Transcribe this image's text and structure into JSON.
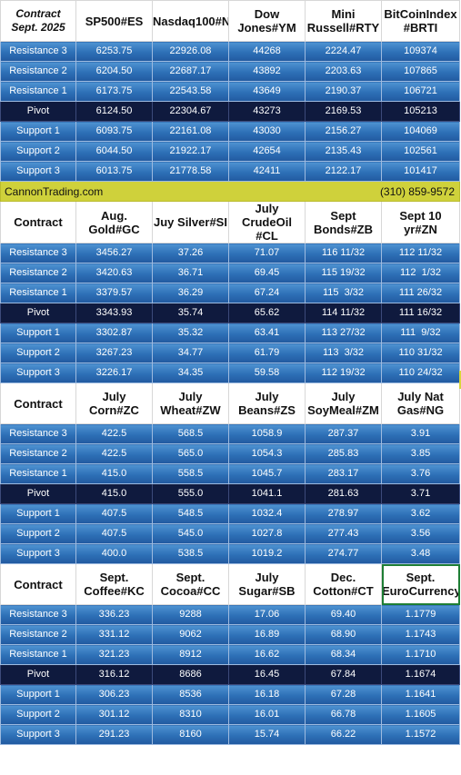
{
  "sections": [
    {
      "header": {
        "label_line1": "Contract",
        "label_line2": "Sept. 2025",
        "columns": [
          [
            "SP500",
            "#ES"
          ],
          [
            "Nasdaq100",
            "#NQ"
          ],
          [
            "Dow Jones",
            "#YM"
          ],
          [
            "Mini Russell",
            "#RTY"
          ],
          [
            "BitCoin",
            "Index #BRTI"
          ]
        ]
      },
      "rows": [
        {
          "label": "Resistance 3",
          "values": [
            "6253.75",
            "22926.08",
            "44268",
            "2224.47",
            "109374"
          ]
        },
        {
          "label": "Resistance 2",
          "values": [
            "6204.50",
            "22687.17",
            "43892",
            "2203.63",
            "107865"
          ]
        },
        {
          "label": "Resistance 1",
          "values": [
            "6173.75",
            "22543.58",
            "43649",
            "2190.37",
            "106721"
          ]
        },
        {
          "label": "Pivot",
          "values": [
            "6124.50",
            "22304.67",
            "43273",
            "2169.53",
            "105213"
          ]
        },
        {
          "label": "Support 1",
          "values": [
            "6093.75",
            "22161.08",
            "43030",
            "2156.27",
            "104069"
          ]
        },
        {
          "label": "Support 2",
          "values": [
            "6044.50",
            "21922.17",
            "42654",
            "2135.43",
            "102561"
          ]
        },
        {
          "label": "Support 3",
          "values": [
            "6013.75",
            "21778.58",
            "42411",
            "2122.17",
            "101417"
          ]
        }
      ]
    },
    {
      "header": {
        "label_line1": "Contract",
        "columns": [
          [
            "Aug. Gold",
            "#GC"
          ],
          [
            "Juy Silver",
            "#SI"
          ],
          [
            "July Crude",
            "Oil #CL"
          ],
          [
            "Sept Bonds",
            "#ZB"
          ],
          [
            "Sept 10 yr",
            "#ZN"
          ]
        ]
      },
      "rows": [
        {
          "label": "Resistance 3",
          "values": [
            "3456.27",
            "37.26",
            "71.07",
            "116 11/32",
            "112 11/32"
          ]
        },
        {
          "label": "Resistance 2",
          "values": [
            "3420.63",
            "36.71",
            "69.45",
            "115 19/32",
            "112  1/32"
          ]
        },
        {
          "label": "Resistance 1",
          "values": [
            "3379.57",
            "36.29",
            "67.24",
            "115  3/32",
            "111 26/32"
          ]
        },
        {
          "label": "Pivot",
          "values": [
            "3343.93",
            "35.74",
            "65.62",
            "114 11/32",
            "111 16/32"
          ]
        },
        {
          "label": "Support 1",
          "values": [
            "3302.87",
            "35.32",
            "63.41",
            "113 27/32",
            "111  9/32"
          ]
        },
        {
          "label": "Support 2",
          "values": [
            "3267.23",
            "34.77",
            "61.79",
            "113  3/32",
            "110 31/32"
          ]
        },
        {
          "label": "Support 3",
          "values": [
            "3226.17",
            "34.35",
            "59.58",
            "112 19/32",
            "110 24/32"
          ]
        }
      ]
    },
    {
      "header": {
        "label_line1": "Contract",
        "columns": [
          [
            "July Corn",
            "#ZC"
          ],
          [
            "July  Wheat",
            "#ZW"
          ],
          [
            "July Beans",
            "#ZS"
          ],
          [
            "July SoyMeal",
            "#ZM"
          ],
          [
            "July Nat Gas",
            "#NG"
          ]
        ]
      },
      "rows": [
        {
          "label": "Resistance 3",
          "values": [
            "422.5",
            "568.5",
            "1058.9",
            "287.37",
            "3.91"
          ]
        },
        {
          "label": "Resistance 2",
          "values": [
            "422.5",
            "565.0",
            "1054.3",
            "285.83",
            "3.85"
          ]
        },
        {
          "label": "Resistance 1",
          "values": [
            "415.0",
            "558.5",
            "1045.7",
            "283.17",
            "3.76"
          ]
        },
        {
          "label": "Pivot",
          "values": [
            "415.0",
            "555.0",
            "1041.1",
            "281.63",
            "3.71"
          ]
        },
        {
          "label": "Support 1",
          "values": [
            "407.5",
            "548.5",
            "1032.4",
            "278.97",
            "3.62"
          ]
        },
        {
          "label": "Support 2",
          "values": [
            "407.5",
            "545.0",
            "1027.8",
            "277.43",
            "3.56"
          ]
        },
        {
          "label": "Support 3",
          "values": [
            "400.0",
            "538.5",
            "1019.2",
            "274.77",
            "3.48"
          ]
        }
      ]
    },
    {
      "header": {
        "label_line1": "Contract",
        "columns": [
          [
            "Sept. Coffee",
            "#KC"
          ],
          [
            "Sept. Cocoa",
            "#CC"
          ],
          [
            "July Sugar",
            "#SB"
          ],
          [
            "Dec. Cotton",
            "#CT"
          ],
          [
            "Sept. Euro",
            "Currency"
          ]
        ]
      },
      "rows": [
        {
          "label": "Resistance 3",
          "values": [
            "336.23",
            "9288",
            "17.06",
            "69.40",
            "1.1779"
          ]
        },
        {
          "label": "Resistance 2",
          "values": [
            "331.12",
            "9062",
            "16.89",
            "68.90",
            "1.1743"
          ]
        },
        {
          "label": "Resistance 1",
          "values": [
            "321.23",
            "8912",
            "16.62",
            "68.34",
            "1.1710"
          ]
        },
        {
          "label": "Pivot",
          "values": [
            "316.12",
            "8686",
            "16.45",
            "67.84",
            "1.1674"
          ]
        },
        {
          "label": "Support 1",
          "values": [
            "306.23",
            "8536",
            "16.18",
            "67.28",
            "1.1641"
          ]
        },
        {
          "label": "Support 2",
          "values": [
            "301.12",
            "8310",
            "16.01",
            "66.78",
            "1.1605"
          ]
        },
        {
          "label": "Support 3",
          "values": [
            "291.23",
            "8160",
            "15.74",
            "66.22",
            "1.1572"
          ]
        }
      ]
    }
  ],
  "banner": {
    "left": "CannonTrading.com",
    "right": "(310) 859-9572"
  },
  "colors": {
    "row_blue": "#2d6fb6",
    "pivot_navy": "#0f1a3e",
    "banner_yellow": "#cfd13b",
    "selected_outline": "#1e7e34"
  }
}
